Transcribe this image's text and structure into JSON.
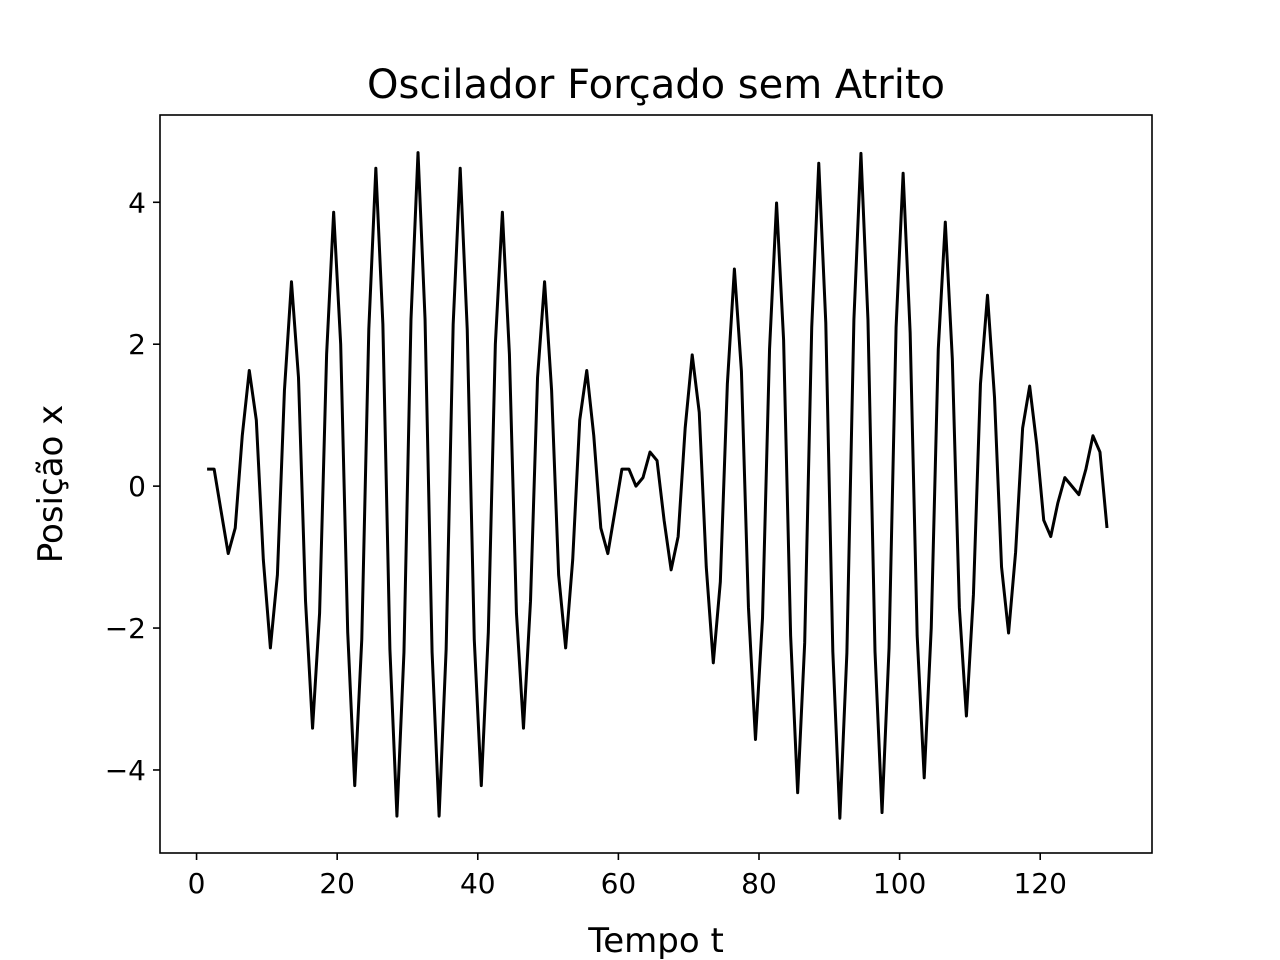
{
  "chart_data": {
    "type": "line",
    "title": "Oscilador Forçado sem Atrito",
    "xlabel": "Tempo t",
    "ylabel": "Posição x",
    "x": [
      1.5,
      2.5,
      3.5,
      4.5,
      5.5,
      6.5,
      7.5,
      8.5,
      9.5,
      10.5,
      11.5,
      12.5,
      13.5,
      14.5,
      15.5,
      16.5,
      17.5,
      18.5,
      19.5,
      20.5,
      21.5,
      22.5,
      23.5,
      24.5,
      25.5,
      26.5,
      27.5,
      28.5,
      29.5,
      30.5,
      31.5,
      32.5,
      33.5,
      34.5,
      35.5,
      36.5,
      37.5,
      38.5,
      39.5,
      40.5,
      41.5,
      42.5,
      43.5,
      44.5,
      45.5,
      46.5,
      47.5,
      48.5,
      49.5,
      50.5,
      51.5,
      52.5,
      53.5,
      54.5,
      55.5,
      56.5,
      57.5,
      58.5,
      59.5,
      60.5,
      61.5,
      62.5,
      63.5,
      64.5,
      65.5,
      66.5,
      67.5,
      68.5,
      69.5,
      70.5,
      71.5,
      72.5,
      73.5,
      74.5,
      75.5,
      76.5,
      77.5,
      78.5,
      79.5,
      80.5,
      81.5,
      82.5,
      83.5,
      84.5,
      85.5,
      86.5,
      87.5,
      88.5,
      89.5,
      90.5,
      91.5,
      92.5,
      93.5,
      94.5,
      95.5,
      96.5,
      97.5,
      98.5,
      99.5,
      100.5,
      101.5,
      102.5,
      103.5,
      104.5,
      105.5,
      106.5,
      107.5,
      108.5,
      109.5,
      110.5,
      111.5,
      112.5,
      113.5,
      114.5,
      115.5,
      116.5,
      117.5,
      118.5,
      119.5,
      120.5,
      121.5,
      122.5,
      123.5,
      124.5,
      125.5,
      126.5,
      127.5,
      128.5,
      129.5
    ],
    "series": [
      {
        "color": "#000000",
        "values": [
          0.24,
          0.24,
          -0.36,
          -0.95,
          -0.59,
          0.71,
          1.63,
          0.93,
          -1.04,
          -2.28,
          -1.25,
          1.35,
          2.88,
          1.53,
          -1.62,
          -3.41,
          -1.79,
          1.86,
          3.86,
          2.0,
          -2.06,
          -4.22,
          -2.16,
          2.21,
          4.48,
          2.28,
          -2.3,
          -4.65,
          -2.34,
          2.35,
          4.7,
          2.35,
          -2.34,
          -4.65,
          -2.3,
          2.28,
          4.48,
          2.21,
          -2.16,
          -4.22,
          -2.06,
          2.0,
          3.86,
          1.86,
          -1.79,
          -3.41,
          -1.62,
          1.53,
          2.88,
          1.35,
          -1.25,
          -2.28,
          -1.04,
          0.93,
          1.63,
          0.71,
          -0.59,
          -0.95,
          -0.36,
          0.24,
          0.24,
          0,
          0.12,
          0.48,
          0.36,
          -0.48,
          -1.18,
          -0.71,
          0.82,
          1.85,
          1.04,
          -1.14,
          -2.49,
          -1.35,
          1.44,
          3.06,
          1.62,
          -1.71,
          -3.57,
          -1.86,
          1.93,
          3.99,
          2.06,
          -2.11,
          -4.32,
          -2.21,
          2.24,
          4.55,
          2.3,
          -2.33,
          -4.68,
          -2.35,
          2.35,
          4.69,
          2.34,
          -2.33,
          -4.6,
          -2.28,
          2.24,
          4.41,
          2.16,
          -2.11,
          -4.11,
          -2.0,
          1.93,
          3.72,
          1.79,
          -1.71,
          -3.24,
          -1.53,
          1.44,
          2.69,
          1.25,
          -1.14,
          -2.07,
          -0.93,
          0.82,
          1.41,
          0.59,
          -0.48,
          -0.71,
          -0.24,
          0.12,
          0,
          -0.12,
          0.24,
          0.71,
          0.48,
          -0.59
        ]
      }
    ],
    "xlim": [
      -5.2,
      135.9
    ],
    "ylim": [
      -5.17,
      5.23
    ],
    "xticks": [
      0,
      20,
      40,
      60,
      80,
      100,
      120
    ],
    "yticks": [
      {
        "value": -4,
        "label": "−4"
      },
      {
        "value": -2,
        "label": "−2"
      },
      0,
      2,
      4
    ]
  }
}
